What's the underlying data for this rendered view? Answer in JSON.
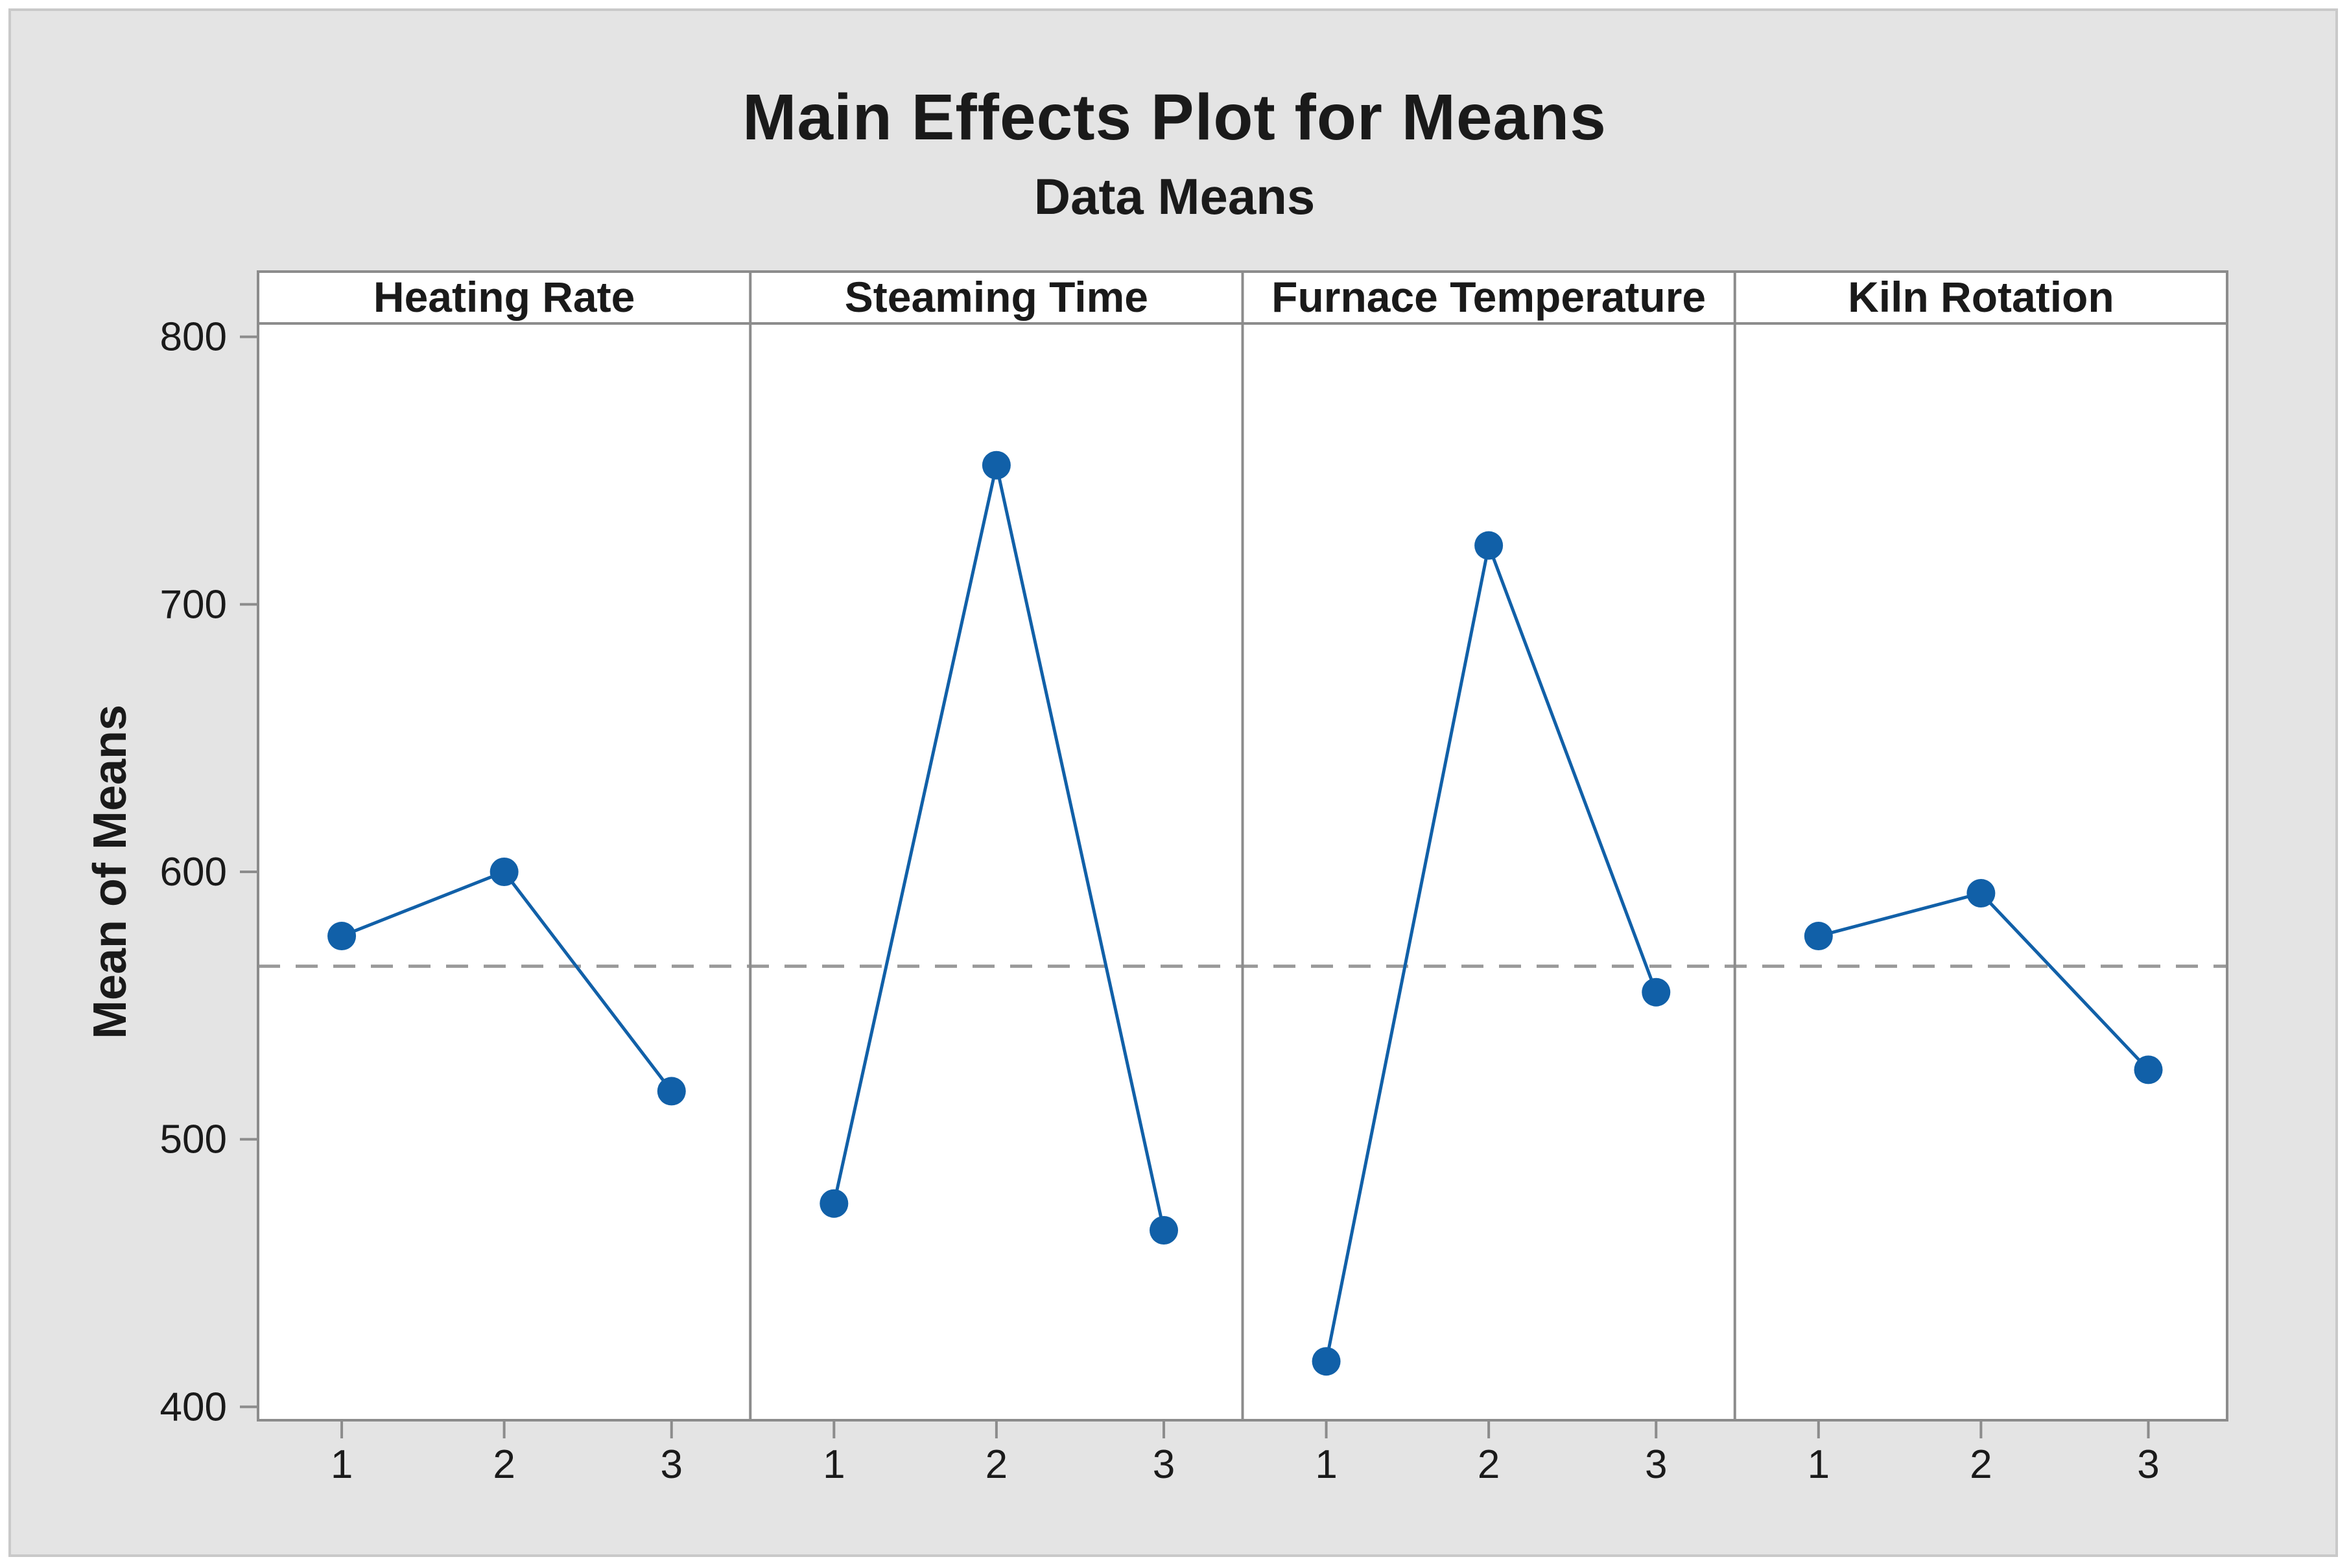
{
  "chart_data": {
    "type": "line",
    "title": "Main Effects Plot for Means",
    "subtitle": "Data Means",
    "ylabel": "Mean of Means",
    "xlabel": "",
    "ylim": [
      395,
      805
    ],
    "yticks": [
      400,
      500,
      600,
      700,
      800
    ],
    "grand_mean_reference": 564.7,
    "legend": "none",
    "grid": "off",
    "panels": [
      {
        "label": "Heating Rate",
        "categories": [
          "1",
          "2",
          "3"
        ],
        "values": [
          576,
          600,
          518
        ]
      },
      {
        "label": "Steaming Time",
        "categories": [
          "1",
          "2",
          "3"
        ],
        "values": [
          476,
          752,
          466
        ]
      },
      {
        "label": "Furnace Temperature",
        "categories": [
          "1",
          "2",
          "3"
        ],
        "values": [
          417,
          722,
          555
        ]
      },
      {
        "label": "Kiln Rotation",
        "categories": [
          "1",
          "2",
          "3"
        ],
        "values": [
          576,
          592,
          526
        ]
      }
    ],
    "colors": {
      "series": "#1160A8",
      "reference_line": "#9A9A9A",
      "frame": "#8C8C8C",
      "tick": "#8C8C8C",
      "text": "#1A1A1A",
      "figure_bg": "#E4E4E4",
      "panel_bg": "#FFFFFF",
      "page_bg": "#FFFFFF",
      "figure_border": "#C9C9C9"
    }
  }
}
